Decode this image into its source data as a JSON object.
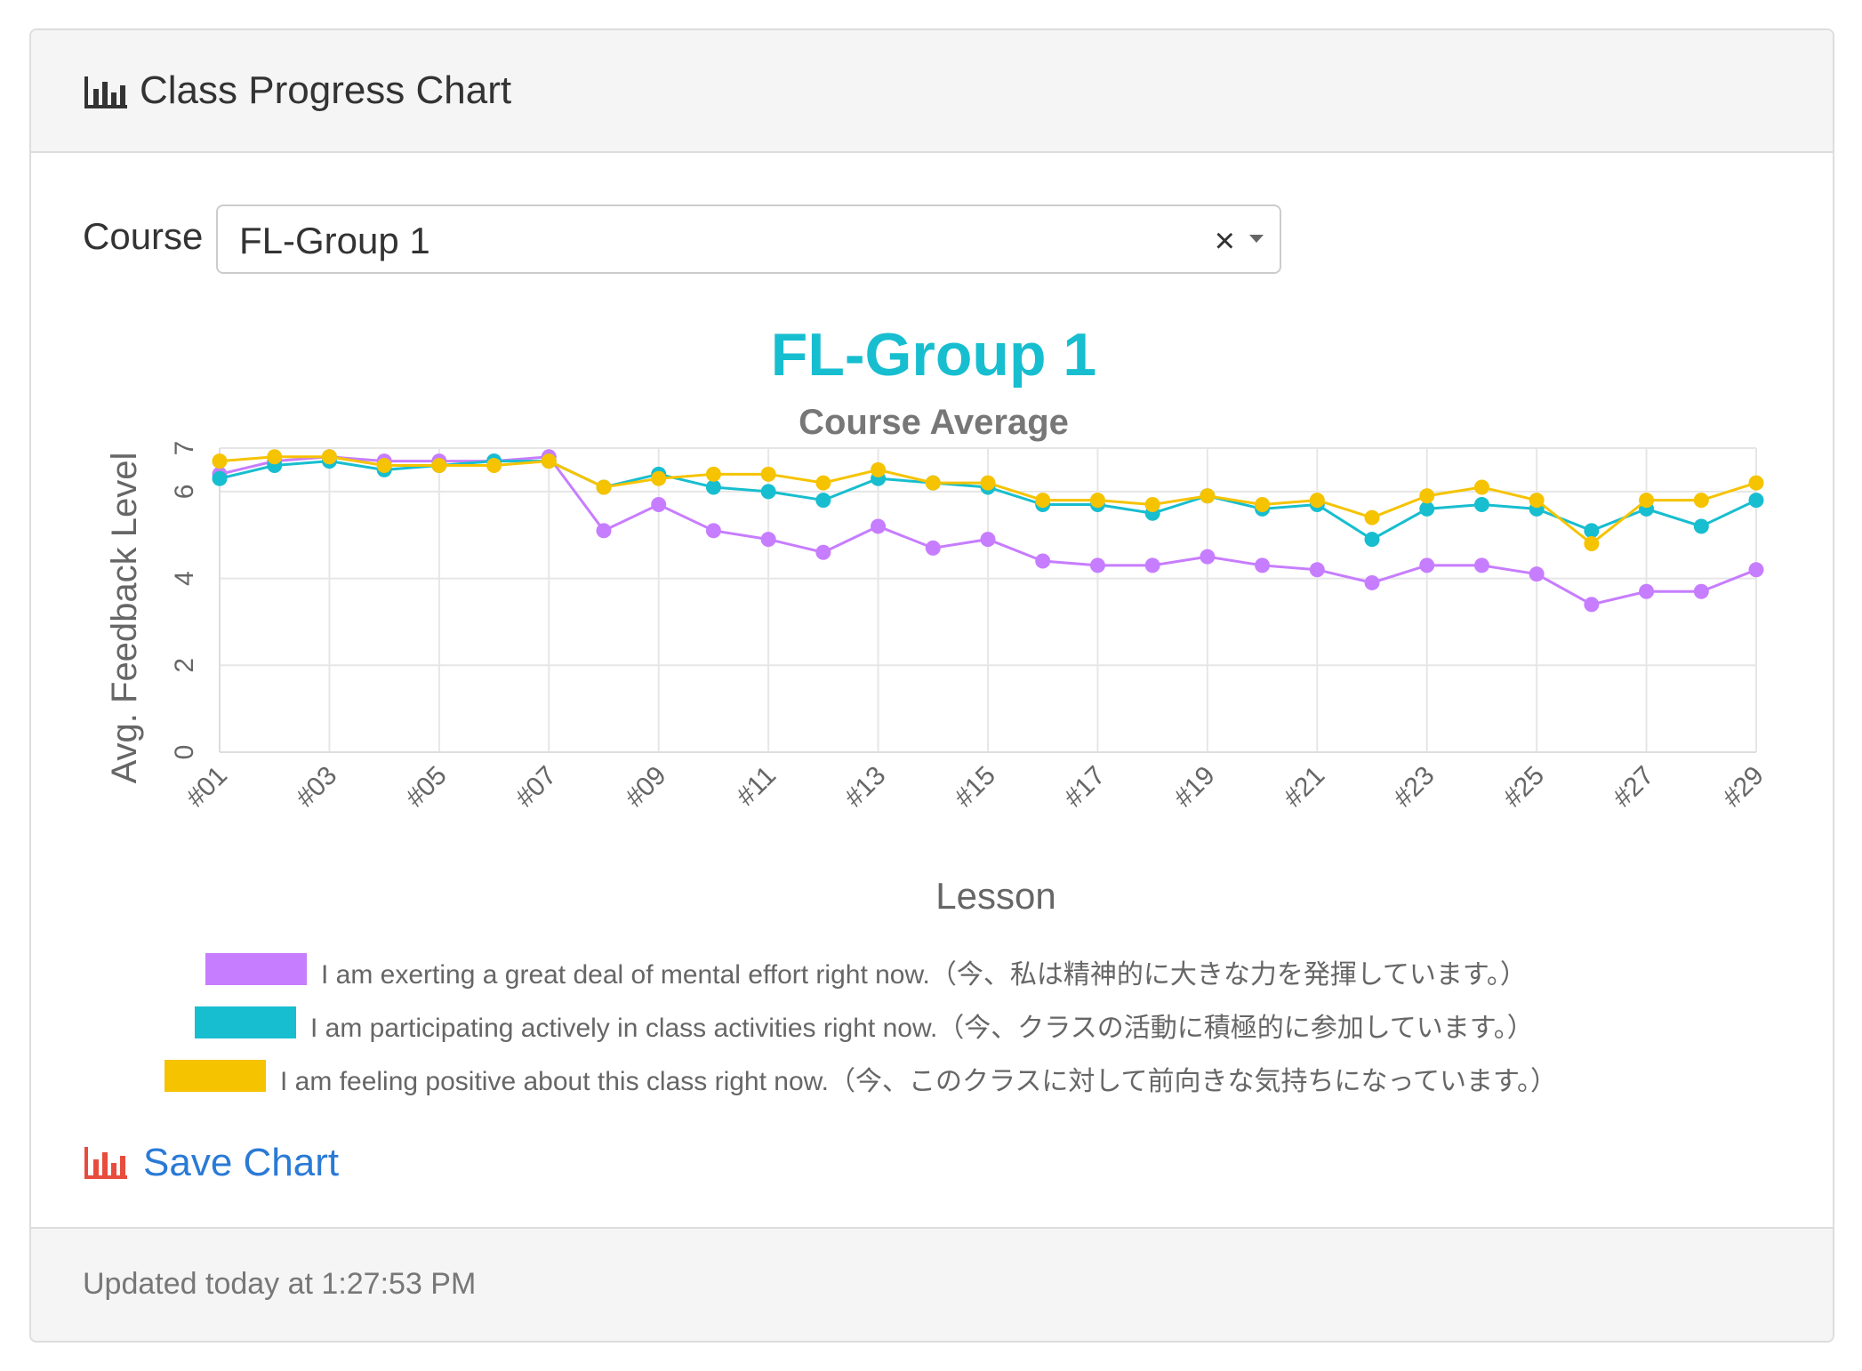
{
  "panel": {
    "title": "Class Progress Chart",
    "title_icon": "bar-chart-icon",
    "course_label": "Course",
    "course_select": {
      "value": "FL-Group 1",
      "clear_symbol": "×",
      "caret_icon": "caret-down-icon"
    },
    "save_label": "Save Chart",
    "save_icon": "bar-chart-icon",
    "updated_text": "Updated today at 1:27:53 PM"
  },
  "colors": {
    "link": "#2a7ad6",
    "title_accent": "#17becf",
    "save_icon": "#e74c3c"
  },
  "chart_data": {
    "type": "line",
    "title": "FL-Group 1",
    "subtitle": "Course Average",
    "xlabel": "Lesson",
    "ylabel": "Avg. Feedback Level",
    "ylim": [
      0,
      7
    ],
    "yticks": [
      0,
      2,
      4,
      6,
      7
    ],
    "grid": true,
    "legend_position": "bottom",
    "categories": [
      "#01",
      "#02",
      "#03",
      "#04",
      "#05",
      "#06",
      "#07",
      "#08",
      "#09",
      "#10",
      "#11",
      "#12",
      "#13",
      "#14",
      "#15",
      "#16",
      "#17",
      "#18",
      "#19",
      "#20",
      "#21",
      "#22",
      "#23",
      "#24",
      "#25",
      "#26",
      "#27",
      "#28",
      "#29"
    ],
    "tick_labels": [
      "#01",
      "#03",
      "#05",
      "#07",
      "#09",
      "#11",
      "#13",
      "#15",
      "#17",
      "#19",
      "#21",
      "#23",
      "#25",
      "#27",
      "#29"
    ],
    "series": [
      {
        "name": "I am exerting a great deal of mental effort right now.（今、私は精神的に大きな力を発揮しています。）",
        "color": "#c77dff",
        "values": [
          6.4,
          6.7,
          6.8,
          6.7,
          6.7,
          6.7,
          6.8,
          5.1,
          5.7,
          5.1,
          4.9,
          4.6,
          5.2,
          4.7,
          4.9,
          4.4,
          4.3,
          4.3,
          4.5,
          4.3,
          4.2,
          3.9,
          4.3,
          4.3,
          4.1,
          3.4,
          3.7,
          3.7,
          4.2
        ]
      },
      {
        "name": "I am participating actively in class activities right now.（今、クラスの活動に積極的に参加しています。）",
        "color": "#17becf",
        "values": [
          6.3,
          6.6,
          6.7,
          6.5,
          6.6,
          6.7,
          6.7,
          6.1,
          6.4,
          6.1,
          6.0,
          5.8,
          6.3,
          6.2,
          6.1,
          5.7,
          5.7,
          5.5,
          5.9,
          5.6,
          5.7,
          4.9,
          5.6,
          5.7,
          5.6,
          5.1,
          5.6,
          5.2,
          5.8
        ]
      },
      {
        "name": "I am feeling positive about this class right now.（今、このクラスに対して前向きな気持ちになっています。）",
        "color": "#f5c300",
        "values": [
          6.7,
          6.8,
          6.8,
          6.6,
          6.6,
          6.6,
          6.7,
          6.1,
          6.3,
          6.4,
          6.4,
          6.2,
          6.5,
          6.2,
          6.2,
          5.8,
          5.8,
          5.7,
          5.9,
          5.7,
          5.8,
          5.4,
          5.9,
          6.1,
          5.8,
          4.8,
          5.8,
          5.8,
          6.2
        ]
      }
    ]
  }
}
